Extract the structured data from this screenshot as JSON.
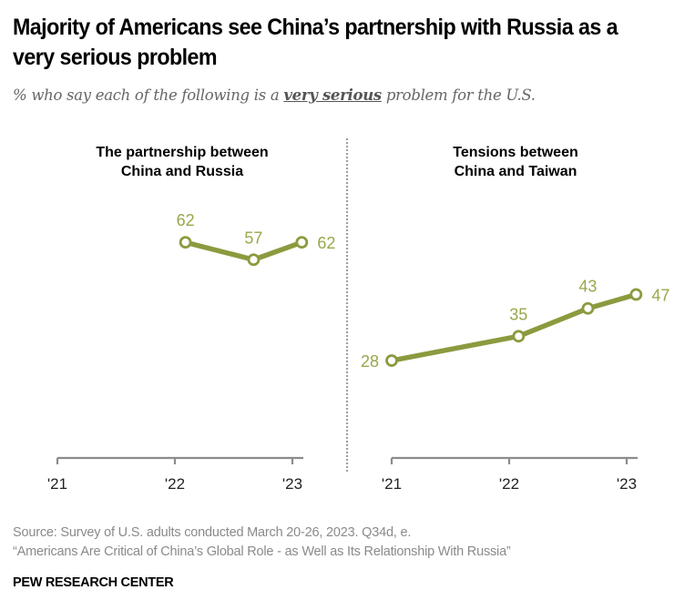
{
  "title": "Majority of Americans see China’s partnership with Russia as a very serious problem",
  "subtitle": {
    "before": "% who say each of the following is a ",
    "emphasis": "very serious",
    "after": " problem for the U.S."
  },
  "colors": {
    "line": "#8c9a3f",
    "label": "#9aa64a",
    "axis": "#8c8c8c",
    "divider": "#a0a0a0"
  },
  "chart_data": [
    {
      "type": "line",
      "title": "The partnership between China and Russia",
      "title_lines": [
        "The partnership between",
        "China and Russia"
      ],
      "x": [
        2022.09,
        2022.67,
        2023.08
      ],
      "values": [
        62,
        57,
        62
      ],
      "labels": [
        "62",
        "57",
        "62"
      ],
      "xticks": [
        2021,
        2022,
        2023
      ],
      "xtick_labels": [
        "'21",
        "'22",
        "'23"
      ],
      "xlim": [
        2021,
        2023
      ],
      "ylim": [
        0,
        100
      ],
      "grid": false
    },
    {
      "type": "line",
      "title": "Tensions between China and Taiwan",
      "title_lines": [
        "Tensions between",
        "China and Taiwan"
      ],
      "x": [
        2021.0,
        2022.08,
        2022.67,
        2023.08
      ],
      "values": [
        28,
        35,
        43,
        47
      ],
      "labels": [
        "28",
        "35",
        "43",
        "47"
      ],
      "xticks": [
        2021,
        2022,
        2023
      ],
      "xtick_labels": [
        "'21",
        "'22",
        "'23"
      ],
      "xlim": [
        2021,
        2023
      ],
      "ylim": [
        0,
        100
      ],
      "grid": false
    }
  ],
  "footer": {
    "source": "Source: Survey of U.S. adults conducted March 20-26, 2023. Q34d, e.",
    "report": "“Americans Are Critical of China’s Global Role - as Well as Its Relationship With Russia”",
    "brand": "PEW RESEARCH CENTER"
  }
}
